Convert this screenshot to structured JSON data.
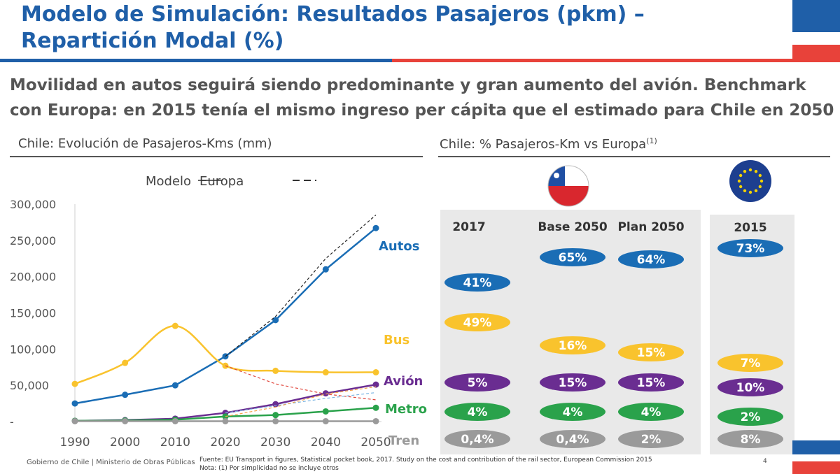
{
  "title": {
    "line1": "Modelo de Simulación: Resultados Pasajeros (pkm) –",
    "line2": "Repartición Modal (%)"
  },
  "subtitle": {
    "line1": "Movilidad en autos seguirá siendo predominante y gran aumento del avión. Benchmark",
    "line2": "con Europa: en 2015 tenía el mismo ingreso per cápita que el estimado para Chile en 2050"
  },
  "left_section_title": "Chile: Evolución de Pasajeros-Kms (mm)",
  "right_section_title": "Chile: % Pasajeros-Km vs Europa",
  "right_section_sup": "(1)",
  "colors": {
    "autos": "#1a6db5",
    "bus": "#f9c32d",
    "avion": "#6a2d91",
    "metro": "#2aa24b",
    "tren": "#9a9a9a",
    "title_blue": "#1f5fa8",
    "flag_red": "#e8423a"
  },
  "chart_data": [
    {
      "type": "line",
      "legend": {
        "modelo": "Modelo",
        "europa": "Europa"
      },
      "x": [
        "1990",
        "2000",
        "2010",
        "2020",
        "2030",
        "2040",
        "2050"
      ],
      "ylim": [
        0,
        300000
      ],
      "yticks": [
        "300,000",
        "250,000",
        "200,000",
        "150,000",
        "100,000",
        "50,000",
        "-"
      ],
      "series": [
        {
          "name": "Autos",
          "key": "autos",
          "values": [
            25000,
            37000,
            50000,
            90000,
            140000,
            210000,
            267000
          ],
          "europa": [
            [
              2020,
              90000
            ],
            [
              2030,
              145000
            ],
            [
              2040,
              225000
            ],
            [
              2050,
              285000
            ]
          ]
        },
        {
          "name": "Bus",
          "key": "bus",
          "values": [
            52000,
            81000,
            132000,
            77000,
            70000,
            68000,
            68000
          ],
          "europa": [
            [
              2020,
              77000
            ],
            [
              2030,
              52000
            ],
            [
              2040,
              38000
            ],
            [
              2050,
              30000
            ]
          ]
        },
        {
          "name": "Avión",
          "key": "avion",
          "values": [
            1000,
            2000,
            4000,
            12000,
            24000,
            39000,
            51000
          ],
          "europa": [
            [
              2020,
              12000
            ],
            [
              2030,
              22000
            ],
            [
              2040,
              32000
            ],
            [
              2050,
              40000
            ]
          ]
        },
        {
          "name": "Metro",
          "key": "metro",
          "values": [
            1000,
            1500,
            2500,
            7000,
            9000,
            14000,
            19000
          ],
          "europa": [
            [
              2020,
              7000
            ],
            [
              2030,
              20000
            ],
            [
              2040,
              38000
            ],
            [
              2050,
              48000
            ]
          ]
        },
        {
          "name": "Tren",
          "key": "tren",
          "values": [
            500,
            500,
            500,
            500,
            500,
            500,
            500
          ],
          "europa": []
        }
      ]
    },
    {
      "type": "table",
      "columns": [
        "2017",
        "Base 2050",
        "Plan 2050",
        "2015"
      ],
      "rows": [
        {
          "mode": "autos",
          "values": [
            "41%",
            "65%",
            "64%",
            "73%"
          ]
        },
        {
          "mode": "bus",
          "values": [
            "49%",
            "16%",
            "15%",
            "7%"
          ]
        },
        {
          "mode": "avion",
          "values": [
            "5%",
            "15%",
            "15%",
            "10%"
          ]
        },
        {
          "mode": "metro",
          "values": [
            "4%",
            "4%",
            "4%",
            "2%"
          ]
        },
        {
          "mode": "tren",
          "values": [
            "0,4%",
            "0,4%",
            "2%",
            "8%"
          ]
        }
      ]
    }
  ],
  "footer": {
    "org": "Gobierno de Chile | Ministerio de Obras Públicas",
    "source": "Fuente: EU Transport in figures, Statistical pocket book, 2017. Study on the cost and contribution of the rail sector, European Commission 2015",
    "note": "Nota: (1) Por simplicidad no se incluye otros",
    "page": "4"
  }
}
